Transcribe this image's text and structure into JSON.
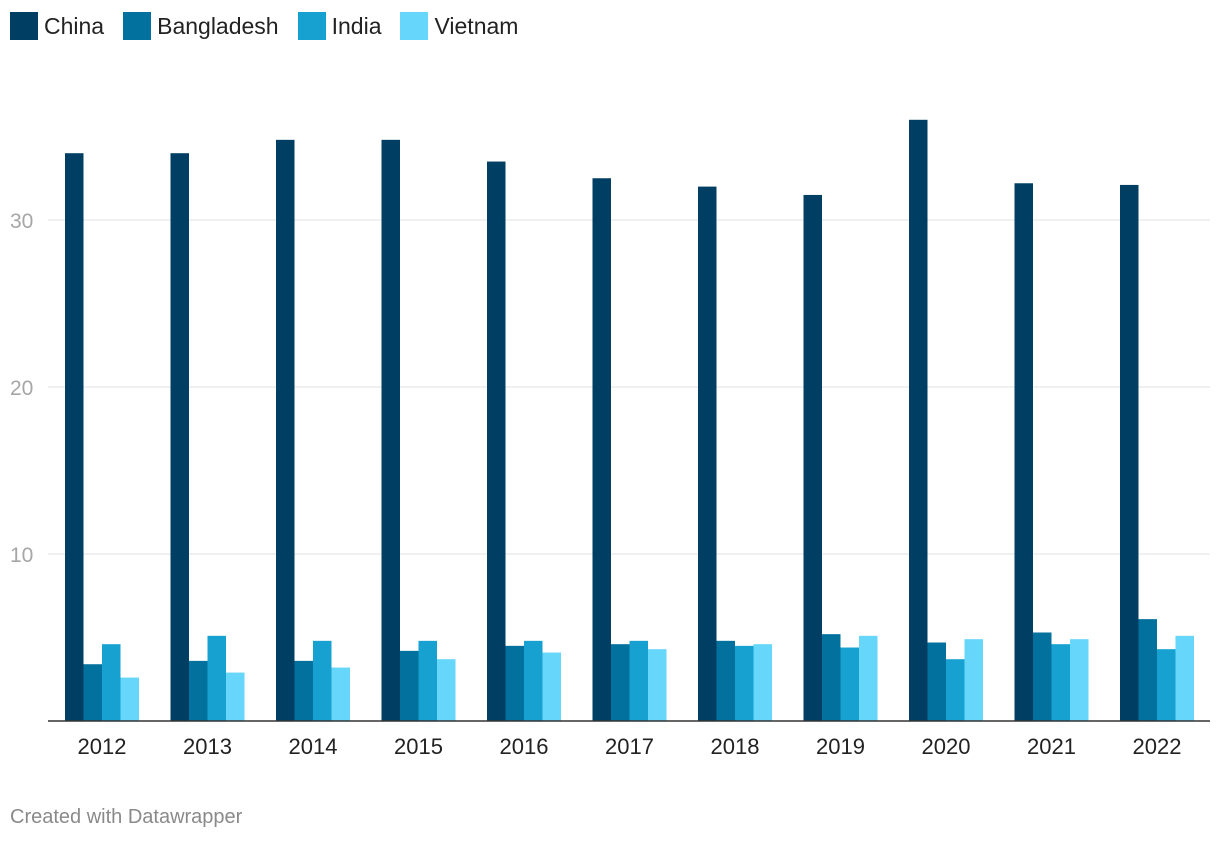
{
  "chart_data": {
    "type": "bar",
    "categories": [
      "2012",
      "2013",
      "2014",
      "2015",
      "2016",
      "2017",
      "2018",
      "2019",
      "2020",
      "2021",
      "2022"
    ],
    "series": [
      {
        "name": "China",
        "color": "#003f63",
        "values": [
          34.0,
          34.0,
          34.8,
          34.8,
          33.5,
          32.5,
          32.0,
          31.5,
          36.0,
          32.2,
          32.1
        ]
      },
      {
        "name": "Bangladesh",
        "color": "#03719d",
        "values": [
          3.4,
          3.6,
          3.6,
          4.2,
          4.5,
          4.6,
          4.8,
          5.2,
          4.7,
          5.3,
          6.1
        ]
      },
      {
        "name": "India",
        "color": "#17a1d1",
        "values": [
          4.6,
          5.1,
          4.8,
          4.8,
          4.8,
          4.8,
          4.5,
          4.4,
          3.7,
          4.6,
          4.3
        ]
      },
      {
        "name": "Vietnam",
        "color": "#66d6fb",
        "values": [
          2.6,
          2.9,
          3.2,
          3.7,
          4.1,
          4.3,
          4.6,
          5.1,
          4.9,
          4.9,
          5.1
        ]
      }
    ],
    "yticks": [
      10,
      20,
      30
    ],
    "ylim": [
      0,
      36
    ],
    "grid": true,
    "legend": "top-left",
    "title": "",
    "xlabel": "",
    "ylabel": ""
  },
  "footer": {
    "credit": "Created with Datawrapper"
  }
}
